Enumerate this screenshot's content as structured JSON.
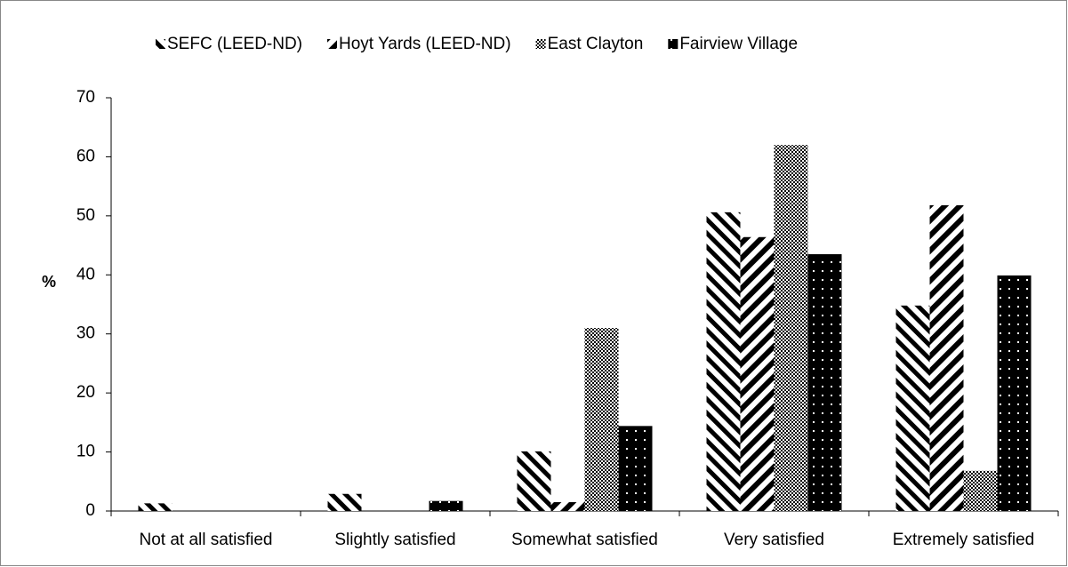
{
  "chart_data": {
    "type": "bar",
    "categories": [
      "Not at all satisfied",
      "Slightly satisfied",
      "Somewhat satisfied",
      "Very satisfied",
      "Extremely satisfied"
    ],
    "series": [
      {
        "name": "SEFC (LEED-ND)",
        "color": "#000000",
        "pattern": "backslash",
        "values": [
          1.3,
          2.9,
          10.1,
          50.6,
          34.8
        ]
      },
      {
        "name": "Hoyt Yards (LEED-ND)",
        "color": "#000000",
        "pattern": "slash",
        "values": [
          0,
          0,
          1.5,
          46.4,
          51.8
        ]
      },
      {
        "name": "East Clayton",
        "color": "#000000",
        "pattern": "checker",
        "values": [
          0,
          0,
          31,
          62,
          6.8
        ]
      },
      {
        "name": "Fairview Village",
        "color": "#000000",
        "pattern": "dots",
        "values": [
          0,
          1.7,
          14.4,
          43.5,
          39.9
        ]
      }
    ],
    "y_label": "%",
    "ylim": [
      0,
      70
    ],
    "yticks": [
      0,
      10,
      20,
      30,
      40,
      50,
      60,
      70
    ],
    "grid": false,
    "legend": "top"
  }
}
